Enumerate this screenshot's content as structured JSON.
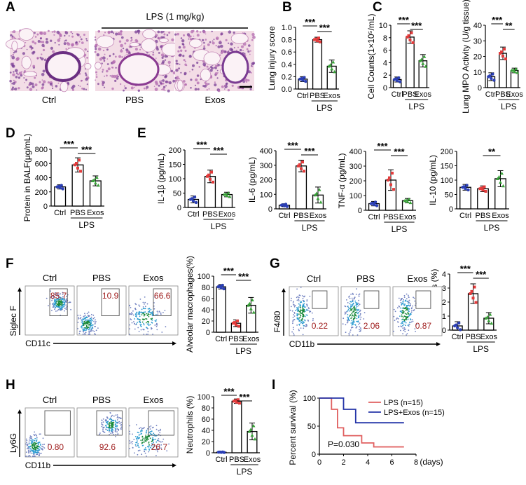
{
  "colors": {
    "ctrl": "#2b3fb5",
    "pbs": "#e33b3b",
    "exos": "#3aa33a",
    "lps_curve": "#e06060",
    "lps_exos_curve": "#2434a8",
    "pvalue_text": "#a02020"
  },
  "panel_letters": [
    "A",
    "B",
    "C",
    "D",
    "E",
    "F",
    "G",
    "H",
    "I"
  ],
  "groups": {
    "ctrl": "Ctrl",
    "pbs": "PBS",
    "exos": "Exos",
    "lps": "LPS"
  },
  "panel_a": {
    "lps_header": "LPS (1 mg/kg)",
    "image_labels": [
      "Ctrl",
      "PBS",
      "Exos"
    ]
  },
  "bar_charts": [
    {
      "id": "A",
      "ylabel": "Lung injury score",
      "ticks": [
        "0.0",
        "0.2",
        "0.4",
        "0.6",
        "0.8",
        "1.0"
      ],
      "ymax": 1.0,
      "values": [
        0.16,
        0.8,
        0.37
      ],
      "errors": [
        0.04,
        0.04,
        0.1
      ],
      "stars": [
        "***",
        "***"
      ]
    },
    {
      "id": "B",
      "ylabel": "Cell Counts(1×10⁵/mL)",
      "ticks": [
        "0",
        "2",
        "4",
        "6",
        "8",
        "10"
      ],
      "ymax": 10,
      "values": [
        1.3,
        8.1,
        4.3
      ],
      "errors": [
        0.4,
        1.0,
        1.0
      ],
      "stars": [
        "***",
        "***"
      ]
    },
    {
      "id": "C",
      "ylabel": "Lung MPO Activity (U/g tissue)",
      "ticks": [
        "0",
        "10",
        "20",
        "30",
        "40"
      ],
      "ymax": 40,
      "values": [
        7,
        22,
        11
      ],
      "errors": [
        2.5,
        4,
        1.5
      ],
      "stars": [
        "***",
        "**"
      ]
    },
    {
      "id": "D",
      "ylabel": "Protein in BALF(μg/mL)",
      "ticks": [
        "0",
        "200",
        "400",
        "600",
        "800"
      ],
      "ymax": 800,
      "values": [
        270,
        580,
        355
      ],
      "errors": [
        30,
        100,
        70
      ],
      "stars": [
        "***",
        "***"
      ]
    },
    {
      "id": "E1",
      "ylabel": "IL-1β (pg/mL)",
      "ticks": [
        "0",
        "50",
        "100",
        "150",
        "200"
      ],
      "ymax": 200,
      "values": [
        28,
        108,
        45
      ],
      "errors": [
        12,
        22,
        8
      ],
      "stars": [
        "***",
        "***"
      ]
    },
    {
      "id": "E2",
      "ylabel": "IL-6 (pg/mL)",
      "ticks": [
        "0",
        "100",
        "200",
        "300",
        "400"
      ],
      "ymax": 400,
      "values": [
        25,
        295,
        95
      ],
      "errors": [
        10,
        40,
        55
      ],
      "stars": [
        "***",
        "***"
      ]
    },
    {
      "id": "E3",
      "ylabel": "TNF-α (pg/mL)",
      "ticks": [
        "0",
        "100",
        "200",
        "300",
        "400"
      ],
      "ymax": 400,
      "values": [
        45,
        205,
        65
      ],
      "errors": [
        15,
        70,
        15
      ],
      "stars": [
        "***",
        "***"
      ]
    },
    {
      "id": "E4",
      "ylabel": "IL-10 (pg/mL)",
      "ticks": [
        "0",
        "50",
        "100",
        "150",
        "200"
      ],
      "ymax": 200,
      "values": [
        75,
        70,
        105
      ],
      "errors": [
        10,
        10,
        28
      ],
      "stars": [
        "",
        "**"
      ]
    },
    {
      "id": "F",
      "ylabel": "Alveolar macrophages(%)",
      "ticks": [
        "0",
        "20",
        "40",
        "60",
        "80",
        "100"
      ],
      "ymax": 100,
      "values": [
        81,
        16,
        48
      ],
      "errors": [
        4,
        6,
        14
      ],
      "stars": [
        "***",
        "***"
      ]
    },
    {
      "id": "G",
      "ylabel": "Macrophages (%)",
      "ticks": [
        "0",
        "1",
        "2",
        "3",
        "4"
      ],
      "ymax": 4,
      "values": [
        0.3,
        2.6,
        0.85
      ],
      "errors": [
        0.3,
        0.7,
        0.4
      ],
      "stars": [
        "***",
        "***"
      ]
    },
    {
      "id": "H",
      "ylabel": "Neutrophils (%)",
      "ticks": [
        "0",
        "20",
        "40",
        "60",
        "80",
        "100"
      ],
      "ymax": 100,
      "values": [
        1,
        92,
        38
      ],
      "errors": [
        0.5,
        4,
        15
      ],
      "stars": [
        "***",
        "***"
      ]
    }
  ],
  "flow_panels": [
    {
      "id": "F",
      "yaxis": "Siglec F",
      "xaxis": "CD11c",
      "labels": [
        "Ctrl",
        "PBS",
        "Exos"
      ],
      "values": [
        "85.7",
        "10.9",
        "66.6"
      ]
    },
    {
      "id": "G",
      "yaxis": "F4/80",
      "xaxis": "CD11b",
      "labels": [
        "Ctrl",
        "PBS",
        "Exos"
      ],
      "values": [
        "0.22",
        "2.06",
        "0.87"
      ]
    },
    {
      "id": "H",
      "yaxis": "Ly6G",
      "xaxis": "CD11b",
      "labels": [
        "Ctrl",
        "PBS",
        "Exos"
      ],
      "values": [
        "0.80",
        "92.6",
        "26.7"
      ]
    }
  ],
  "chart_data": {
    "type": "line",
    "title": "",
    "xlabel": "(days)",
    "ylabel": "Percent survival (%)",
    "xticks": [
      "0",
      "2",
      "4",
      "6",
      "8"
    ],
    "yticks": [
      "0",
      "50",
      "100"
    ],
    "xlim": [
      0,
      8
    ],
    "ylim": [
      0,
      100
    ],
    "legend": "top-right",
    "annotation": "P=0.030",
    "series": [
      {
        "name": "LPS (n=15)",
        "color": "#e06060",
        "steps": [
          [
            0,
            100
          ],
          [
            1,
            100
          ],
          [
            1,
            80
          ],
          [
            1.5,
            80
          ],
          [
            1.5,
            47
          ],
          [
            2,
            47
          ],
          [
            2,
            33
          ],
          [
            3.5,
            33
          ],
          [
            3.5,
            20
          ],
          [
            4.5,
            20
          ],
          [
            4.5,
            13
          ],
          [
            7,
            13
          ]
        ]
      },
      {
        "name": "LPS+Exos (n=15)",
        "color": "#2434a8",
        "steps": [
          [
            0,
            100
          ],
          [
            2,
            100
          ],
          [
            2,
            80
          ],
          [
            3,
            80
          ],
          [
            3,
            56
          ],
          [
            7,
            56
          ]
        ]
      }
    ]
  }
}
